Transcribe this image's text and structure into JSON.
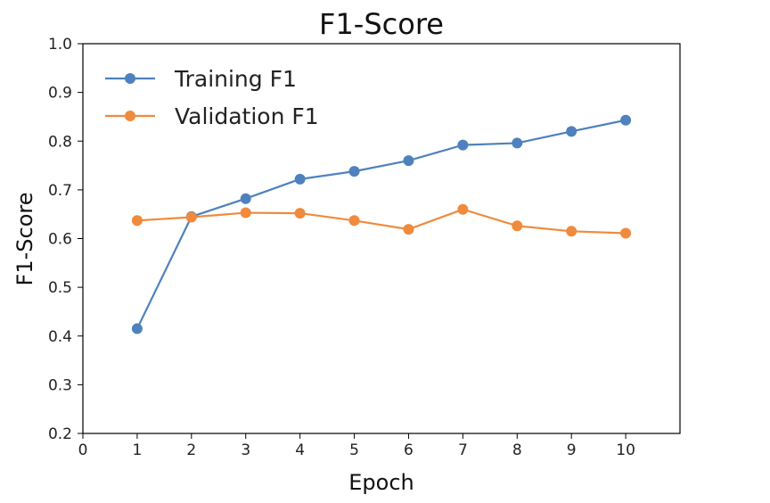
{
  "chart_data": {
    "type": "line",
    "title": "F1-Score",
    "xlabel": "Epoch",
    "ylabel": "F1-Score",
    "xlim": [
      0,
      11
    ],
    "ylim": [
      0.2,
      1.0
    ],
    "xticks": [
      "0",
      "1",
      "2",
      "3",
      "4",
      "5",
      "6",
      "7",
      "8",
      "9",
      "10"
    ],
    "yticks": [
      "0.2",
      "0.3",
      "0.4",
      "0.5",
      "0.6",
      "0.7",
      "0.8",
      "0.9",
      "1.0"
    ],
    "grid": false,
    "legend_position": "top-left",
    "x": [
      1,
      2,
      3,
      4,
      5,
      6,
      7,
      8,
      9,
      10
    ],
    "series": [
      {
        "name": "Training F1",
        "color": "#4e81bd",
        "values": [
          0.415,
          0.645,
          0.682,
          0.722,
          0.738,
          0.76,
          0.792,
          0.796,
          0.82,
          0.843
        ]
      },
      {
        "name": "Validation F1",
        "color": "#f08a3c",
        "values": [
          0.637,
          0.644,
          0.653,
          0.652,
          0.637,
          0.619,
          0.66,
          0.626,
          0.615,
          0.611
        ]
      }
    ]
  }
}
